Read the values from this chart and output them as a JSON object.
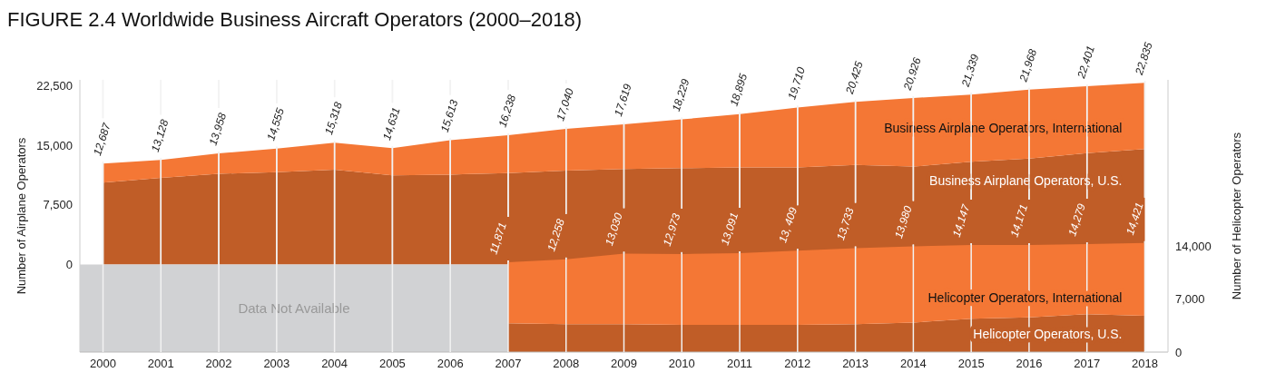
{
  "chart_data": [
    {
      "type": "area",
      "title": "FIGURE 2.4 Worldwide Business Aircraft Operators (2000–2018)",
      "ylabel": "Number of Airplane Operators",
      "categories": [
        "2000",
        "2001",
        "2002",
        "2003",
        "2004",
        "2005",
        "2006",
        "2007",
        "2008",
        "2009",
        "2010",
        "2011",
        "2012",
        "2013",
        "2014",
        "2015",
        "2016",
        "2017",
        "2018"
      ],
      "stacked": true,
      "grid": "x",
      "tick_labels": "y",
      "ylim": [
        -11000,
        23200
      ],
      "yticks": [
        0,
        {
          "value": 7500,
          "label": "7,500"
        },
        {
          "value": 15000,
          "label": "15,000"
        },
        {
          "value": 22500,
          "label": "22,500"
        }
      ],
      "series": [
        {
          "name": "Business Airplane Operators, U.S.",
          "color": "#c05d27",
          "values": [
            10300,
            10900,
            11400,
            11600,
            11900,
            11200,
            11300,
            11500,
            11800,
            12000,
            12100,
            12200,
            12200,
            12500,
            12300,
            12900,
            13300,
            14000,
            14500
          ]
        },
        {
          "name": "Business Airplane Operators, International",
          "color": "#f47735",
          "values": [
            2387,
            2228,
            2558,
            2955,
            3418,
            3431,
            4313,
            4738,
            5240,
            5619,
            6129,
            6695,
            7510,
            7925,
            8626,
            8439,
            8668,
            8401,
            8335
          ]
        }
      ],
      "totals": [
        "12,687",
        "13,128",
        "13,958",
        "14,555",
        "15,318",
        "14,631",
        "15,613",
        "16,238",
        "17,040",
        "17,619",
        "18,229",
        "18,895",
        "19,710",
        "20,425",
        "20,926",
        "21,339",
        "21,968",
        "22,401",
        "22,835"
      ]
    },
    {
      "type": "area",
      "y2label": "Number of Helicopter Operators",
      "categories": [
        "2000",
        "2001",
        "2002",
        "2003",
        "2004",
        "2005",
        "2006",
        "2007",
        "2008",
        "2009",
        "2010",
        "2011",
        "2012",
        "2013",
        "2014",
        "2015",
        "2016",
        "2017",
        "2018"
      ],
      "stacked": true,
      "grid": "x",
      "y2lim": [
        0,
        36000
      ],
      "y2ticks": [
        0,
        {
          "value": 7000,
          "label": "7,000"
        },
        {
          "value": 14000,
          "label": "14,000"
        }
      ],
      "bands": [
        {
          "axis": "x",
          "from": "2000",
          "to": "2007",
          "label": "Data Not Available",
          "color": "#d1d2d4"
        }
      ],
      "series": [
        {
          "name": "Helicopter Operators, U.S.",
          "color": "#c05d27",
          "axis": "y2",
          "values": [
            null,
            null,
            null,
            null,
            null,
            null,
            null,
            3800,
            3700,
            3700,
            3600,
            3600,
            3600,
            3700,
            3900,
            4400,
            4600,
            5000,
            4800
          ]
        },
        {
          "name": "Helicopter Operators, International",
          "color": "#f47735",
          "axis": "y2",
          "values": [
            null,
            null,
            null,
            null,
            null,
            null,
            null,
            8071,
            8558,
            9330,
            9373,
            9491,
            9809,
            10033,
            10080,
            9747,
            9571,
            9279,
            9621
          ]
        }
      ],
      "totals": [
        null,
        null,
        null,
        null,
        null,
        null,
        null,
        "11,871",
        "12,258",
        "13,030",
        "12,973",
        "13,091",
        "13, 409",
        "13,733",
        "13,980",
        "14,147",
        "14,171",
        "14,279",
        "14,421"
      ]
    }
  ]
}
